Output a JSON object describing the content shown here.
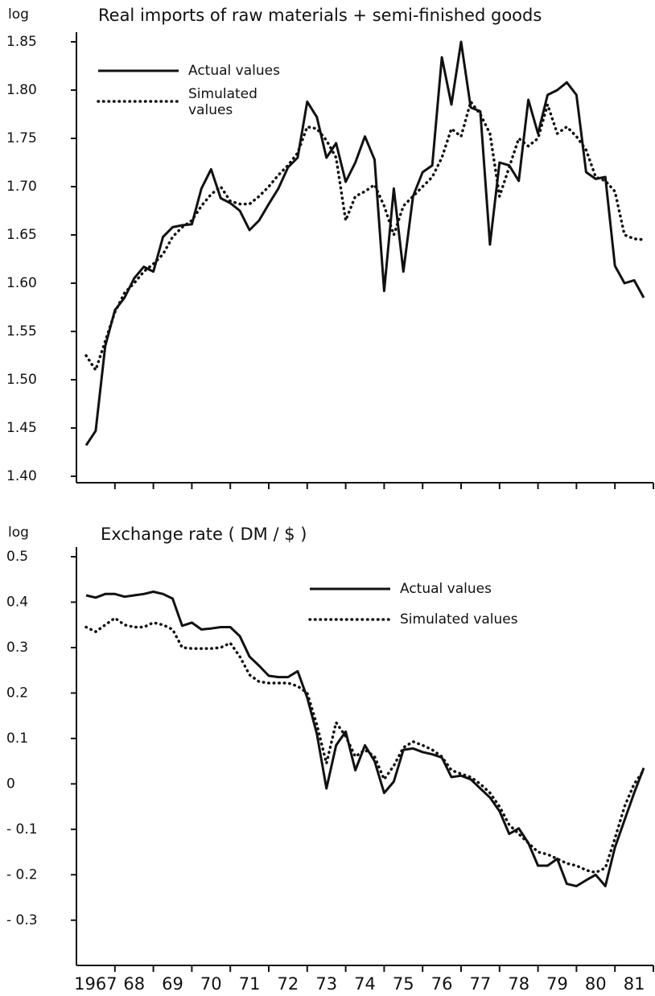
{
  "chart_data": [
    {
      "type": "line",
      "title": "Real imports of raw materials + semi-finished goods",
      "ylabel": "log",
      "x": [
        1967.25,
        1967.5,
        1967.75,
        1968,
        1968.25,
        1968.5,
        1968.75,
        1969,
        1969.25,
        1969.5,
        1969.75,
        1970,
        1970.25,
        1970.5,
        1970.75,
        1971,
        1971.25,
        1971.5,
        1971.75,
        1972,
        1972.25,
        1972.5,
        1972.75,
        1973,
        1973.25,
        1973.5,
        1973.75,
        1974,
        1974.25,
        1974.5,
        1974.75,
        1975,
        1975.25,
        1975.5,
        1975.75,
        1976,
        1976.25,
        1976.5,
        1976.75,
        1977,
        1977.25,
        1977.5,
        1977.75,
        1978,
        1978.25,
        1978.5,
        1978.75,
        1979,
        1979.25,
        1979.5,
        1979.75,
        1980,
        1980.25,
        1980.5,
        1980.75,
        1981,
        1981.25,
        1981.5,
        1981.75
      ],
      "series": [
        {
          "name": "Actual values",
          "color": "#111111",
          "style": "solid",
          "values": [
            1.432,
            1.447,
            1.535,
            1.572,
            1.585,
            1.605,
            1.617,
            1.612,
            1.648,
            1.658,
            1.66,
            1.661,
            1.698,
            1.718,
            1.688,
            1.683,
            1.675,
            1.655,
            1.665,
            1.682,
            1.698,
            1.72,
            1.73,
            1.788,
            1.772,
            1.73,
            1.745,
            1.705,
            1.725,
            1.752,
            1.728,
            1.592,
            1.698,
            1.612,
            1.69,
            1.715,
            1.722,
            1.834,
            1.785,
            1.85,
            1.782,
            1.778,
            1.64,
            1.725,
            1.722,
            1.706,
            1.79,
            1.755,
            1.795,
            1.8,
            1.808,
            1.795,
            1.715,
            1.708,
            1.71,
            1.618,
            1.6,
            1.603,
            1.585
          ]
        },
        {
          "name": "Simulated values",
          "color": "#111111",
          "style": "dotted",
          "values": [
            1.525,
            1.51,
            1.54,
            1.57,
            1.59,
            1.6,
            1.612,
            1.62,
            1.63,
            1.648,
            1.658,
            1.665,
            1.68,
            1.692,
            1.7,
            1.685,
            1.682,
            1.682,
            1.69,
            1.7,
            1.712,
            1.722,
            1.735,
            1.762,
            1.76,
            1.748,
            1.73,
            1.665,
            1.69,
            1.695,
            1.702,
            1.68,
            1.65,
            1.68,
            1.69,
            1.7,
            1.71,
            1.73,
            1.76,
            1.752,
            1.788,
            1.775,
            1.755,
            1.69,
            1.72,
            1.75,
            1.742,
            1.75,
            1.785,
            1.755,
            1.762,
            1.752,
            1.738,
            1.71,
            1.706,
            1.695,
            1.65,
            1.646,
            1.645
          ]
        }
      ],
      "xlim": [
        1967,
        1982
      ],
      "x_tick_marks": [
        1968,
        1969,
        1970,
        1971,
        1972,
        1973,
        1974,
        1975,
        1976,
        1977,
        1978,
        1979,
        1980,
        1981,
        1982
      ],
      "ylim": [
        1.4,
        1.85
      ],
      "yticks": [
        {
          "value": 1.4,
          "label": "1.40"
        },
        1.45,
        {
          "value": 1.5,
          "label": "1.50"
        },
        1.55,
        {
          "value": 1.6,
          "label": "1.60"
        },
        1.65,
        {
          "value": 1.7,
          "label": "1.70"
        },
        1.75,
        {
          "value": 1.8,
          "label": "1.80"
        },
        1.85
      ],
      "legend": "upper left"
    },
    {
      "type": "line",
      "title": "Exchange rate ( DM / $ )",
      "ylabel": "log",
      "x": [
        1967.25,
        1967.5,
        1967.75,
        1968,
        1968.25,
        1968.5,
        1968.75,
        1969,
        1969.25,
        1969.5,
        1969.75,
        1970,
        1970.25,
        1970.5,
        1970.75,
        1971,
        1971.25,
        1971.5,
        1971.75,
        1972,
        1972.25,
        1972.5,
        1972.75,
        1973,
        1973.25,
        1973.5,
        1973.75,
        1974,
        1974.25,
        1974.5,
        1974.75,
        1975,
        1975.25,
        1975.5,
        1975.75,
        1976,
        1976.25,
        1976.5,
        1976.75,
        1977,
        1977.25,
        1977.5,
        1977.75,
        1978,
        1978.25,
        1978.5,
        1978.75,
        1979,
        1979.25,
        1979.5,
        1979.75,
        1980,
        1980.25,
        1980.5,
        1980.75,
        1981,
        1981.25,
        1981.5,
        1981.75
      ],
      "series": [
        {
          "name": "Actual values",
          "color": "#111111",
          "style": "solid",
          "values": [
            0.415,
            0.41,
            0.418,
            0.418,
            0.412,
            0.415,
            0.418,
            0.423,
            0.418,
            0.408,
            0.348,
            0.355,
            0.34,
            0.342,
            0.345,
            0.345,
            0.325,
            0.28,
            0.26,
            0.238,
            0.235,
            0.235,
            0.248,
            0.19,
            0.11,
            -0.01,
            0.085,
            0.115,
            0.03,
            0.085,
            0.05,
            -0.02,
            0.005,
            0.075,
            0.078,
            0.07,
            0.065,
            0.058,
            0.015,
            0.018,
            0.01,
            -0.01,
            -0.03,
            -0.06,
            -0.11,
            -0.098,
            -0.13,
            -0.18,
            -0.18,
            -0.165,
            -0.22,
            -0.225,
            -0.212,
            -0.2,
            -0.225,
            -0.14,
            -0.08,
            -0.02,
            0.035
          ]
        },
        {
          "name": "Simulated values",
          "color": "#111111",
          "style": "dotted",
          "values": [
            0.345,
            0.335,
            0.35,
            0.365,
            0.35,
            0.345,
            0.345,
            0.355,
            0.35,
            0.34,
            0.3,
            0.298,
            0.298,
            0.298,
            0.3,
            0.31,
            0.28,
            0.24,
            0.225,
            0.222,
            0.222,
            0.222,
            0.215,
            0.2,
            0.13,
            0.045,
            0.135,
            0.105,
            0.06,
            0.075,
            0.06,
            0.01,
            0.04,
            0.08,
            0.093,
            0.085,
            0.075,
            0.06,
            0.03,
            0.022,
            0.015,
            0.0,
            -0.02,
            -0.05,
            -0.09,
            -0.11,
            -0.13,
            -0.15,
            -0.155,
            -0.165,
            -0.175,
            -0.18,
            -0.19,
            -0.195,
            -0.185,
            -0.12,
            -0.05,
            0.0,
            0.03
          ]
        }
      ],
      "xlim": [
        1967,
        1982
      ],
      "x_tick_marks": [
        1968,
        1969,
        1970,
        1971,
        1972,
        1973,
        1974,
        1975,
        1976,
        1977,
        1978,
        1979,
        1980,
        1981,
        1982
      ],
      "x_labels": [
        {
          "value": 1967.5,
          "label": "1967"
        },
        {
          "value": 1968.5,
          "label": "68"
        },
        {
          "value": 1969.5,
          "label": "69"
        },
        {
          "value": 1970.5,
          "label": "70"
        },
        {
          "value": 1971.5,
          "label": "71"
        },
        {
          "value": 1972.5,
          "label": "72"
        },
        {
          "value": 1973.5,
          "label": "73"
        },
        {
          "value": 1974.5,
          "label": "74"
        },
        {
          "value": 1975.5,
          "label": "75"
        },
        {
          "value": 1976.5,
          "label": "76"
        },
        {
          "value": 1977.5,
          "label": "77"
        },
        {
          "value": 1978.5,
          "label": "78"
        },
        {
          "value": 1979.5,
          "label": "79"
        },
        {
          "value": 1980.5,
          "label": "80"
        },
        {
          "value": 1981.5,
          "label": "81"
        }
      ],
      "ylim": [
        -0.35,
        0.5
      ],
      "yticks": [
        {
          "value": -0.3,
          "label": "- 0.3"
        },
        {
          "value": -0.2,
          "label": "- 0.2"
        },
        {
          "value": -0.1,
          "label": "- 0.1"
        },
        0,
        0.1,
        0.2,
        0.3,
        0.4,
        0.5
      ],
      "legend": "upper right"
    }
  ]
}
